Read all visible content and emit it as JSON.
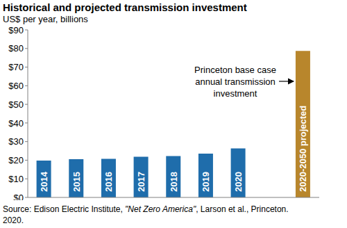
{
  "chart_data": {
    "type": "bar",
    "title": "Historical and projected transmission investment",
    "subtitle": "US$ per year, billions",
    "categories": [
      "2014",
      "2015",
      "2016",
      "2017",
      "2018",
      "2019",
      "2020",
      null,
      "2020-2050 projected"
    ],
    "values": [
      19.8,
      20.5,
      20.7,
      21.8,
      22.2,
      23.5,
      26.3,
      null,
      78.7
    ],
    "colors": [
      "#1f6dab",
      "#1f6dab",
      "#1f6dab",
      "#1f6dab",
      "#1f6dab",
      "#1f6dab",
      "#1f6dab",
      "#1f6dab",
      "#b8862c"
    ],
    "ylim": [
      0,
      90
    ],
    "yticks": [
      {
        "value": 0,
        "label": "$0"
      },
      {
        "value": 10,
        "label": "$10"
      },
      {
        "value": 20,
        "label": "$20"
      },
      {
        "value": 30,
        "label": "$30"
      },
      {
        "value": 40,
        "label": "$40"
      },
      {
        "value": 50,
        "label": "$50"
      },
      {
        "value": 60,
        "label": "$60"
      },
      {
        "value": 70,
        "label": "$70"
      },
      {
        "value": 80,
        "label": "$80"
      },
      {
        "value": 90,
        "label": "$90"
      }
    ],
    "grid": false,
    "annotation": "Princeton base case annual transmission investment",
    "source": "Source: Edison Electric Institute, \"Net Zero America\", Larson et al., Princeton. 2020."
  }
}
